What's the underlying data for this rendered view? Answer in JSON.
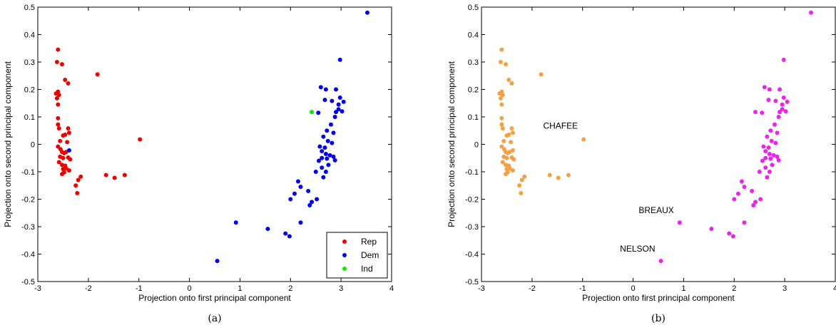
{
  "chart_data": [
    {
      "type": "scatter",
      "caption": "(a)",
      "xlabel": "Projection onto first principal component",
      "ylabel": "Projection onto second principal component",
      "xlim": [
        -3,
        4
      ],
      "ylim": [
        -0.5,
        0.5
      ],
      "xticks": [
        "-3",
        "-2",
        "-1",
        "0",
        "1",
        "2",
        "3",
        "4"
      ],
      "yticks": [
        "-0.5",
        "-0.4",
        "-0.3",
        "-0.2",
        "-0.1",
        "0",
        "0.1",
        "0.2",
        "0.3",
        "0.4",
        "0.5"
      ],
      "legend": {
        "position": "bottom-right"
      },
      "series": [
        {
          "name": "Rep",
          "color": "#ee0000",
          "points": [
            [
              -2.6,
              0.345
            ],
            [
              -2.62,
              0.3
            ],
            [
              -2.52,
              0.292
            ],
            [
              -2.46,
              0.235
            ],
            [
              -2.4,
              0.222
            ],
            [
              -1.82,
              0.255
            ],
            [
              -2.64,
              0.185
            ],
            [
              -2.6,
              0.192
            ],
            [
              -2.58,
              0.18
            ],
            [
              -2.62,
              0.168
            ],
            [
              -2.6,
              0.145
            ],
            [
              -2.6,
              0.095
            ],
            [
              -2.6,
              0.072
            ],
            [
              -2.58,
              0.058
            ],
            [
              -2.4,
              0.058
            ],
            [
              -2.38,
              0.042
            ],
            [
              -2.5,
              0.032
            ],
            [
              -2.46,
              0.035
            ],
            [
              -2.56,
              0.012
            ],
            [
              -2.42,
              0.008
            ],
            [
              -2.6,
              -0.008
            ],
            [
              -2.55,
              -0.018
            ],
            [
              -2.52,
              -0.028
            ],
            [
              -2.48,
              -0.032
            ],
            [
              -2.44,
              -0.028
            ],
            [
              -2.56,
              -0.045
            ],
            [
              -2.5,
              -0.05
            ],
            [
              -2.4,
              -0.048
            ],
            [
              -2.36,
              -0.055
            ],
            [
              -2.58,
              -0.065
            ],
            [
              -2.52,
              -0.075
            ],
            [
              -2.46,
              -0.078
            ],
            [
              -2.5,
              -0.09
            ],
            [
              -2.44,
              -0.088
            ],
            [
              -2.38,
              -0.095
            ],
            [
              -2.52,
              -0.108
            ],
            [
              -2.48,
              -0.102
            ],
            [
              -0.98,
              0.018
            ],
            [
              -2.25,
              -0.15
            ],
            [
              -2.2,
              -0.13
            ],
            [
              -2.15,
              -0.118
            ],
            [
              -2.22,
              -0.178
            ],
            [
              -1.65,
              -0.112
            ],
            [
              -1.48,
              -0.122
            ],
            [
              -1.28,
              -0.112
            ]
          ]
        },
        {
          "name": "Dem",
          "color": "#0000ee",
          "points": [
            [
              3.52,
              0.48
            ],
            [
              2.98,
              0.308
            ],
            [
              2.6,
              0.208
            ],
            [
              2.7,
              0.2
            ],
            [
              2.9,
              0.2
            ],
            [
              2.98,
              0.17
            ],
            [
              3.05,
              0.155
            ],
            [
              2.68,
              0.162
            ],
            [
              2.82,
              0.158
            ],
            [
              2.95,
              0.145
            ],
            [
              2.95,
              0.128
            ],
            [
              2.9,
              0.118
            ],
            [
              3.02,
              0.12
            ],
            [
              2.88,
              0.1
            ],
            [
              2.55,
              0.115
            ],
            [
              2.8,
              0.072
            ],
            [
              2.72,
              0.05
            ],
            [
              2.85,
              0.042
            ],
            [
              2.65,
              0.028
            ],
            [
              2.74,
              0.012
            ],
            [
              2.82,
              0.005
            ],
            [
              2.58,
              -0.008
            ],
            [
              2.68,
              -0.012
            ],
            [
              2.62,
              -0.025
            ],
            [
              2.7,
              -0.035
            ],
            [
              2.78,
              -0.04
            ],
            [
              2.85,
              -0.045
            ],
            [
              2.62,
              -0.05
            ],
            [
              2.72,
              -0.052
            ],
            [
              2.56,
              -0.06
            ],
            [
              2.88,
              -0.058
            ],
            [
              2.75,
              -0.075
            ],
            [
              2.62,
              -0.085
            ],
            [
              2.5,
              -0.1
            ],
            [
              2.7,
              -0.1
            ],
            [
              2.65,
              -0.12
            ],
            [
              2.15,
              -0.135
            ],
            [
              2.2,
              -0.155
            ],
            [
              2.35,
              -0.17
            ],
            [
              2.08,
              -0.18
            ],
            [
              2.0,
              -0.2
            ],
            [
              2.52,
              -0.2
            ],
            [
              2.42,
              -0.21
            ],
            [
              2.38,
              -0.222
            ],
            [
              0.92,
              -0.285
            ],
            [
              2.2,
              -0.285
            ],
            [
              1.55,
              -0.308
            ],
            [
              1.9,
              -0.325
            ],
            [
              1.98,
              -0.335
            ],
            [
              0.55,
              -0.425
            ],
            [
              -2.38,
              -0.022
            ]
          ]
        },
        {
          "name": "Ind",
          "color": "#00ee00",
          "points": [
            [
              2.42,
              0.118
            ]
          ]
        }
      ]
    },
    {
      "type": "scatter",
      "caption": "(b)",
      "xlabel": "Projection onto first principal component",
      "ylabel": "Projection onto second principal component",
      "xlim": [
        -3,
        4
      ],
      "ylim": [
        -0.5,
        0.5
      ],
      "xticks": [
        "-3",
        "-2",
        "-1",
        "0",
        "1",
        "2",
        "3",
        "4"
      ],
      "yticks": [
        "-0.5",
        "-0.4",
        "-0.3",
        "-0.2",
        "-0.1",
        "0",
        "0.1",
        "0.2",
        "0.3",
        "0.4",
        "0.5"
      ],
      "annotations": [
        {
          "text": "CHAFEE",
          "x": -0.98,
          "y": 0.018
        },
        {
          "text": "BREAUX",
          "x": 0.92,
          "y": -0.285
        },
        {
          "text": "NELSON",
          "x": 0.55,
          "y": -0.425
        }
      ],
      "series": [
        {
          "color": "#f5a042",
          "points": [
            [
              -2.6,
              0.345
            ],
            [
              -2.62,
              0.3
            ],
            [
              -2.52,
              0.292
            ],
            [
              -2.46,
              0.235
            ],
            [
              -2.4,
              0.222
            ],
            [
              -1.82,
              0.255
            ],
            [
              -2.64,
              0.185
            ],
            [
              -2.6,
              0.192
            ],
            [
              -2.58,
              0.18
            ],
            [
              -2.62,
              0.168
            ],
            [
              -2.6,
              0.145
            ],
            [
              -2.6,
              0.095
            ],
            [
              -2.6,
              0.072
            ],
            [
              -2.58,
              0.058
            ],
            [
              -2.4,
              0.058
            ],
            [
              -2.38,
              0.042
            ],
            [
              -2.5,
              0.032
            ],
            [
              -2.46,
              0.035
            ],
            [
              -2.56,
              0.012
            ],
            [
              -2.42,
              0.008
            ],
            [
              -2.6,
              -0.008
            ],
            [
              -2.55,
              -0.018
            ],
            [
              -2.52,
              -0.028
            ],
            [
              -2.48,
              -0.032
            ],
            [
              -2.44,
              -0.028
            ],
            [
              -2.56,
              -0.045
            ],
            [
              -2.5,
              -0.05
            ],
            [
              -2.4,
              -0.048
            ],
            [
              -2.36,
              -0.055
            ],
            [
              -2.58,
              -0.065
            ],
            [
              -2.52,
              -0.075
            ],
            [
              -2.46,
              -0.078
            ],
            [
              -2.5,
              -0.09
            ],
            [
              -2.44,
              -0.088
            ],
            [
              -2.38,
              -0.095
            ],
            [
              -2.52,
              -0.108
            ],
            [
              -2.48,
              -0.102
            ],
            [
              -0.98,
              0.018
            ],
            [
              -2.25,
              -0.15
            ],
            [
              -2.2,
              -0.13
            ],
            [
              -2.15,
              -0.118
            ],
            [
              -2.22,
              -0.178
            ],
            [
              -1.65,
              -0.112
            ],
            [
              -1.48,
              -0.122
            ],
            [
              -1.28,
              -0.112
            ],
            [
              -2.38,
              -0.022
            ]
          ]
        },
        {
          "color": "#ee22ee",
          "points": [
            [
              3.52,
              0.48
            ],
            [
              2.98,
              0.308
            ],
            [
              2.6,
              0.208
            ],
            [
              2.7,
              0.2
            ],
            [
              2.9,
              0.2
            ],
            [
              2.98,
              0.17
            ],
            [
              3.05,
              0.155
            ],
            [
              2.68,
              0.162
            ],
            [
              2.82,
              0.158
            ],
            [
              2.95,
              0.145
            ],
            [
              2.95,
              0.128
            ],
            [
              2.9,
              0.118
            ],
            [
              3.02,
              0.12
            ],
            [
              2.88,
              0.1
            ],
            [
              2.55,
              0.115
            ],
            [
              2.8,
              0.072
            ],
            [
              2.72,
              0.05
            ],
            [
              2.85,
              0.042
            ],
            [
              2.65,
              0.028
            ],
            [
              2.74,
              0.012
            ],
            [
              2.82,
              0.005
            ],
            [
              2.58,
              -0.008
            ],
            [
              2.68,
              -0.012
            ],
            [
              2.62,
              -0.025
            ],
            [
              2.7,
              -0.035
            ],
            [
              2.78,
              -0.04
            ],
            [
              2.85,
              -0.045
            ],
            [
              2.62,
              -0.05
            ],
            [
              2.72,
              -0.052
            ],
            [
              2.56,
              -0.06
            ],
            [
              2.88,
              -0.058
            ],
            [
              2.75,
              -0.075
            ],
            [
              2.62,
              -0.085
            ],
            [
              2.5,
              -0.1
            ],
            [
              2.7,
              -0.1
            ],
            [
              2.65,
              -0.12
            ],
            [
              2.15,
              -0.135
            ],
            [
              2.2,
              -0.155
            ],
            [
              2.35,
              -0.17
            ],
            [
              2.08,
              -0.18
            ],
            [
              2.0,
              -0.2
            ],
            [
              2.52,
              -0.2
            ],
            [
              2.42,
              -0.21
            ],
            [
              2.38,
              -0.222
            ],
            [
              0.92,
              -0.285
            ],
            [
              2.2,
              -0.285
            ],
            [
              1.55,
              -0.308
            ],
            [
              1.9,
              -0.325
            ],
            [
              1.98,
              -0.335
            ],
            [
              0.55,
              -0.425
            ],
            [
              2.42,
              0.118
            ]
          ]
        }
      ]
    }
  ]
}
